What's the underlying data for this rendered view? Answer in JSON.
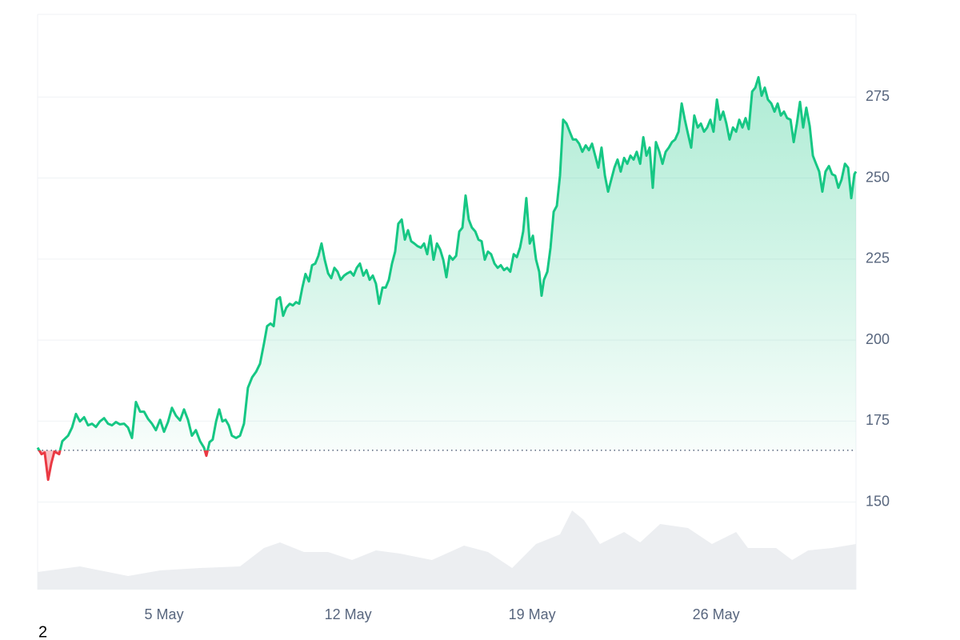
{
  "chart_data": {
    "type": "line",
    "note": "2",
    "baseline": 166,
    "xlim": [
      0.19,
      31.32
    ],
    "xticks": [
      {
        "value": 5,
        "label": "5 May"
      },
      {
        "value": 12,
        "label": "12 May"
      },
      {
        "value": 19,
        "label": "19 May"
      },
      {
        "value": 26,
        "label": "26 May"
      }
    ],
    "ylim": [
      123,
      300.5
    ],
    "yticks": [
      150,
      175,
      200,
      225,
      250,
      275
    ],
    "grid": true,
    "up_color": "#16c784",
    "down_color": "#ea3943",
    "x": [
      0.19,
      0.34,
      0.46,
      0.59,
      0.71,
      0.83,
      1.01,
      1.13,
      1.35,
      1.5,
      1.65,
      1.8,
      1.96,
      2.11,
      2.26,
      2.41,
      2.56,
      2.72,
      2.87,
      3.02,
      3.17,
      3.32,
      3.48,
      3.63,
      3.78,
      3.93,
      4.09,
      4.24,
      4.39,
      4.54,
      4.69,
      4.85,
      5.0,
      5.15,
      5.3,
      5.45,
      5.61,
      5.76,
      5.91,
      6.06,
      6.21,
      6.37,
      6.52,
      6.61,
      6.73,
      6.85,
      6.98,
      7.1,
      7.22,
      7.34,
      7.46,
      7.58,
      7.74,
      7.89,
      8.04,
      8.19,
      8.35,
      8.5,
      8.65,
      8.8,
      8.92,
      9.05,
      9.17,
      9.29,
      9.41,
      9.53,
      9.65,
      9.78,
      9.9,
      10.02,
      10.14,
      10.26,
      10.38,
      10.51,
      10.63,
      10.75,
      10.87,
      10.99,
      11.11,
      11.24,
      11.36,
      11.48,
      11.6,
      11.72,
      11.85,
      11.97,
      12.09,
      12.21,
      12.33,
      12.45,
      12.58,
      12.7,
      12.82,
      12.94,
      13.06,
      13.18,
      13.31,
      13.43,
      13.55,
      13.67,
      13.79,
      13.91,
      14.04,
      14.16,
      14.28,
      14.4,
      14.52,
      14.64,
      14.77,
      14.89,
      15.01,
      15.13,
      15.25,
      15.38,
      15.5,
      15.62,
      15.74,
      15.86,
      15.98,
      16.11,
      16.23,
      16.35,
      16.47,
      16.59,
      16.71,
      16.84,
      16.96,
      17.08,
      17.2,
      17.32,
      17.44,
      17.57,
      17.69,
      17.81,
      17.93,
      18.05,
      18.17,
      18.3,
      18.42,
      18.54,
      18.66,
      18.78,
      18.91,
      19.03,
      19.15,
      19.27,
      19.36,
      19.45,
      19.58,
      19.7,
      19.82,
      19.94,
      20.06,
      20.18,
      20.31,
      20.43,
      20.55,
      20.67,
      20.79,
      20.91,
      21.04,
      21.16,
      21.28,
      21.4,
      21.52,
      21.64,
      21.77,
      21.89,
      22.01,
      22.13,
      22.25,
      22.37,
      22.5,
      22.62,
      22.74,
      22.86,
      22.98,
      23.11,
      23.23,
      23.35,
      23.47,
      23.59,
      23.71,
      23.84,
      23.96,
      24.08,
      24.2,
      24.32,
      24.44,
      24.57,
      24.69,
      24.81,
      24.93,
      25.05,
      25.17,
      25.3,
      25.42,
      25.54,
      25.66,
      25.78,
      25.9,
      26.03,
      26.15,
      26.27,
      26.39,
      26.51,
      26.64,
      26.76,
      26.88,
      27.0,
      27.12,
      27.24,
      27.37,
      27.49,
      27.61,
      27.73,
      27.85,
      27.97,
      28.1,
      28.22,
      28.34,
      28.46,
      28.58,
      28.7,
      28.83,
      28.95,
      29.07,
      29.19,
      29.31,
      29.43,
      29.56,
      29.68,
      29.8,
      29.92,
      30.04,
      30.16,
      30.29,
      30.41,
      30.53,
      30.65,
      30.77,
      30.9,
      31.02,
      31.14,
      31.26,
      31.32
    ],
    "values": [
      166.8,
      164.8,
      165.3,
      156.9,
      161.9,
      165.6,
      164.8,
      168.8,
      170.5,
      173.0,
      177.2,
      174.9,
      176.2,
      173.7,
      174.2,
      173.2,
      174.9,
      175.9,
      174.2,
      173.7,
      174.7,
      174.0,
      174.2,
      173.0,
      169.8,
      180.9,
      177.9,
      177.9,
      175.7,
      174.2,
      172.2,
      175.4,
      171.7,
      174.7,
      179.1,
      176.7,
      175.2,
      178.6,
      175.4,
      170.5,
      172.2,
      168.8,
      166.8,
      164.3,
      168.5,
      169.3,
      174.9,
      178.6,
      174.9,
      175.4,
      173.7,
      170.5,
      169.8,
      170.5,
      174.2,
      185.3,
      188.5,
      190.2,
      192.7,
      198.9,
      204.3,
      205.1,
      204.3,
      212.5,
      213.2,
      207.5,
      210.0,
      211.2,
      210.7,
      211.7,
      211.2,
      216.2,
      220.4,
      218.1,
      223.1,
      223.6,
      226.0,
      229.8,
      224.8,
      220.6,
      219.1,
      222.3,
      221.1,
      218.6,
      219.9,
      220.6,
      221.1,
      219.9,
      222.3,
      223.6,
      219.9,
      221.6,
      218.6,
      219.9,
      217.4,
      211.2,
      216.2,
      216.2,
      218.6,
      223.6,
      227.3,
      235.9,
      237.2,
      231.0,
      233.9,
      230.5,
      229.8,
      229.0,
      228.5,
      229.8,
      226.5,
      232.2,
      224.8,
      229.8,
      228.0,
      224.8,
      219.4,
      226.0,
      224.8,
      226.0,
      233.5,
      234.7,
      244.6,
      237.2,
      234.7,
      233.5,
      231.0,
      230.5,
      224.8,
      227.3,
      226.5,
      223.6,
      222.3,
      223.1,
      221.6,
      222.3,
      221.1,
      226.5,
      225.6,
      228.5,
      233.5,
      243.8,
      229.8,
      232.2,
      224.8,
      221.1,
      213.7,
      218.6,
      221.1,
      228.5,
      239.6,
      241.4,
      250.7,
      268.0,
      266.8,
      264.3,
      261.9,
      261.9,
      260.6,
      258.1,
      260.1,
      258.6,
      260.6,
      256.9,
      253.2,
      259.4,
      250.7,
      245.8,
      249.5,
      253.2,
      255.7,
      252.0,
      256.2,
      254.4,
      256.9,
      255.7,
      258.1,
      254.4,
      262.6,
      256.9,
      259.4,
      247.0,
      261.1,
      258.1,
      254.4,
      258.1,
      259.4,
      261.1,
      261.9,
      264.3,
      273.0,
      268.0,
      263.6,
      259.4,
      269.3,
      265.6,
      266.8,
      264.3,
      265.6,
      268.0,
      264.3,
      274.2,
      268.0,
      270.5,
      266.8,
      261.9,
      265.6,
      264.3,
      268.0,
      265.6,
      268.5,
      265.1,
      276.7,
      277.9,
      281.1,
      275.4,
      277.9,
      274.2,
      273.0,
      270.5,
      273.0,
      269.3,
      270.5,
      268.5,
      268.0,
      261.1,
      266.8,
      273.5,
      265.6,
      271.7,
      266.0,
      256.9,
      254.4,
      252.0,
      245.8,
      252.0,
      253.7,
      251.2,
      250.7,
      247.0,
      249.5,
      254.4,
      253.2,
      243.8,
      251.2,
      252.0
    ],
    "volume": {
      "color": "#eceef1",
      "ylim": [
        0,
        719
      ],
      "x": [
        0.19,
        1.8,
        3.63,
        4.85,
        6.37,
        7.89,
        8.8,
        9.41,
        10.32,
        11.24,
        12.15,
        13.06,
        13.98,
        15.19,
        16.41,
        17.32,
        18.24,
        19.15,
        20.06,
        20.52,
        20.97,
        21.58,
        22.5,
        23.11,
        23.87,
        24.93,
        25.84,
        26.76,
        27.21,
        28.28,
        28.89,
        29.5,
        30.41,
        31.32
      ],
      "values": [
        22,
        29,
        17,
        24,
        27,
        29,
        52,
        59,
        47,
        47,
        37,
        49,
        45,
        37,
        55,
        47,
        27,
        57,
        69,
        99,
        87,
        57,
        72,
        59,
        82,
        77,
        57,
        72,
        52,
        52,
        37,
        49,
        52,
        57
      ]
    }
  }
}
